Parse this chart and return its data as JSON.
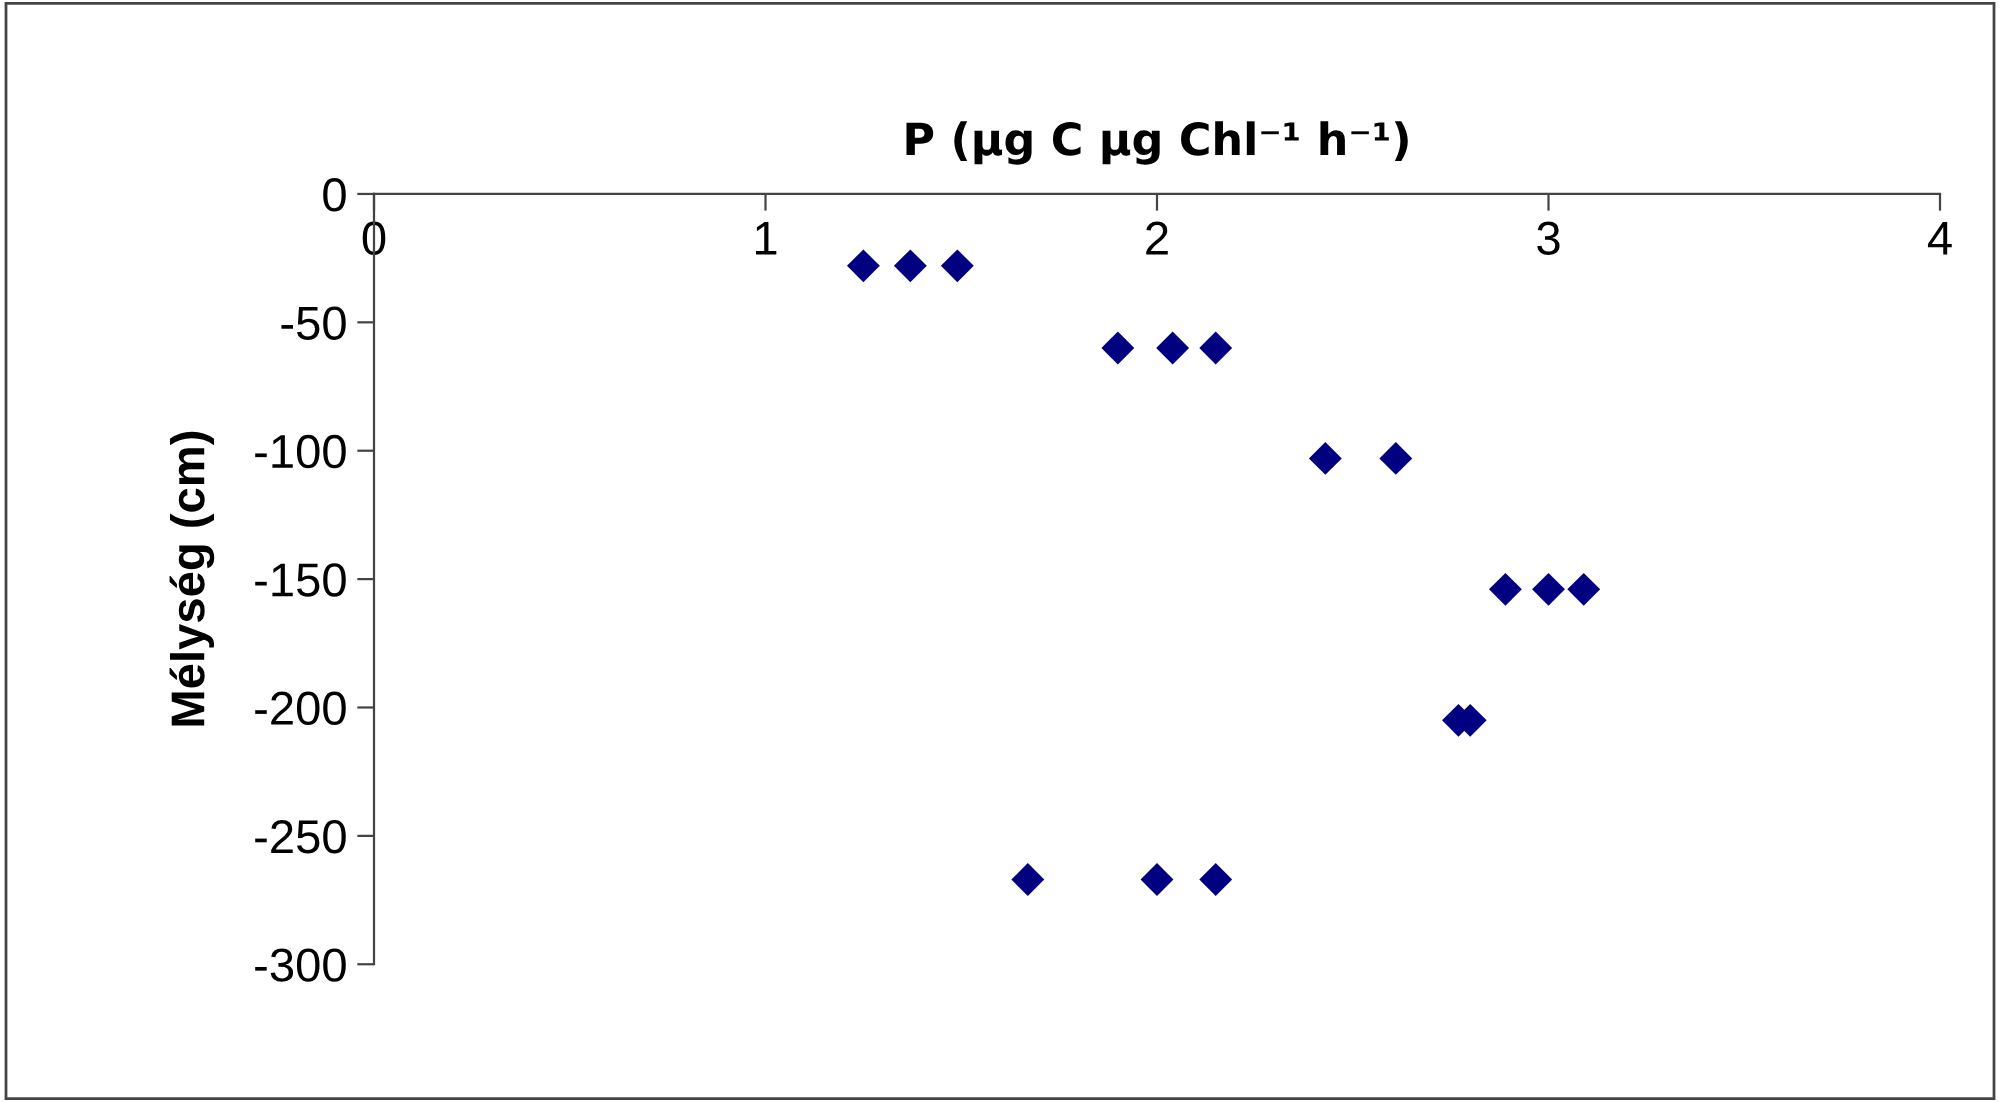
{
  "chart_data": {
    "type": "scatter",
    "xlabel": "P (µg C µg Chl⁻¹ h⁻¹)",
    "ylabel": "Mélység (cm)",
    "x": [
      1.25,
      1.37,
      1.49,
      1.9,
      2.04,
      2.15,
      2.43,
      2.61,
      2.89,
      3.0,
      3.09,
      2.77,
      2.8,
      1.67,
      2.0,
      2.15
    ],
    "series": [
      {
        "color": "#000080",
        "values": [
          -28,
          -28,
          -28,
          -60,
          -60,
          -60,
          -103,
          -103,
          -154,
          -154,
          -154,
          -205,
          -205,
          -267,
          -267,
          -267
        ]
      }
    ],
    "marker": "diamond",
    "xlim": [
      0,
      4
    ],
    "xticks": [
      0,
      1,
      2,
      3,
      4
    ],
    "ylim": [
      -300,
      0
    ],
    "yticks": [
      -300,
      -250,
      -200,
      -150,
      -100,
      -50,
      0
    ],
    "grid": false,
    "legend": false
  }
}
